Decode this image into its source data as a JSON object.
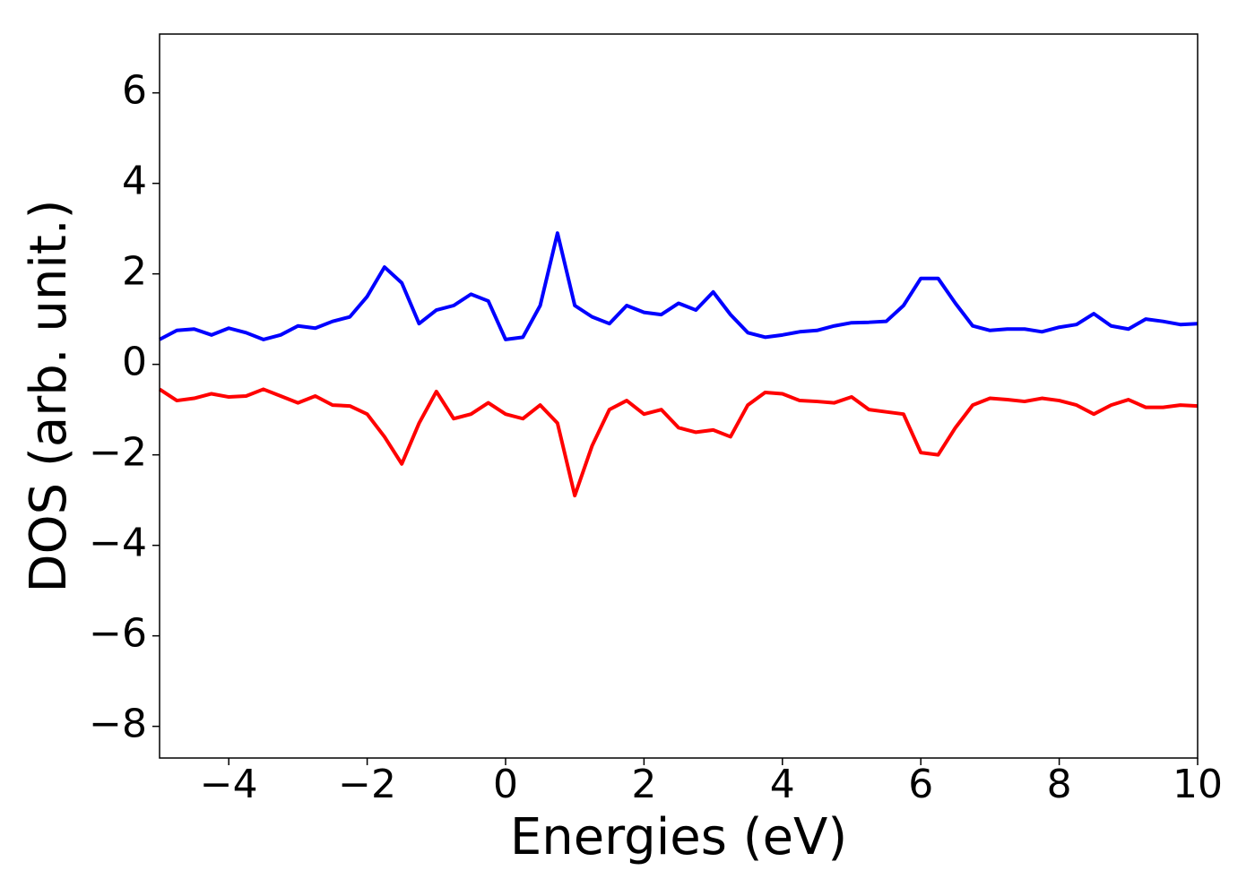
{
  "chart_data": {
    "type": "line",
    "xlabel": "Energies (eV)",
    "ylabel": "DOS (arb. unit.)",
    "x": [
      -5,
      -4.75,
      -4.5,
      -4.25,
      -4,
      -3.75,
      -3.5,
      -3.25,
      -3,
      -2.75,
      -2.5,
      -2.25,
      -2,
      -1.75,
      -1.5,
      -1.25,
      -1,
      -0.75,
      -0.5,
      -0.25,
      0,
      0.25,
      0.5,
      0.75,
      1,
      1.25,
      1.5,
      1.75,
      2,
      2.25,
      2.5,
      2.75,
      3,
      3.25,
      3.5,
      3.75,
      4,
      4.25,
      4.5,
      4.75,
      5,
      5.25,
      5.5,
      5.75,
      6,
      6.25,
      6.5,
      6.75,
      7,
      7.25,
      7.5,
      7.75,
      8,
      8.25,
      8.5,
      8.75,
      9,
      9.25,
      9.5,
      9.75,
      10
    ],
    "series": [
      {
        "color": "#0000ff",
        "values": [
          0.55,
          0.75,
          0.78,
          0.65,
          0.8,
          0.7,
          0.55,
          0.65,
          0.85,
          0.8,
          0.95,
          1.05,
          1.5,
          2.15,
          1.8,
          0.9,
          1.2,
          1.3,
          1.55,
          1.4,
          0.55,
          0.6,
          1.3,
          2.9,
          1.3,
          1.05,
          0.9,
          1.3,
          1.15,
          1.1,
          1.35,
          1.2,
          1.6,
          1.1,
          0.7,
          0.6,
          0.65,
          0.72,
          0.75,
          0.85,
          0.92,
          0.93,
          0.95,
          1.3,
          1.9,
          1.9,
          1.35,
          0.85,
          0.75,
          0.78,
          0.78,
          0.72,
          0.82,
          0.88,
          1.12,
          0.85,
          0.78,
          1.0,
          0.95,
          0.88,
          0.9
        ]
      },
      {
        "color": "#ff0000",
        "values": [
          -0.55,
          -0.8,
          -0.75,
          -0.65,
          -0.72,
          -0.7,
          -0.55,
          -0.7,
          -0.85,
          -0.7,
          -0.9,
          -0.92,
          -1.1,
          -1.6,
          -2.2,
          -1.3,
          -0.6,
          -1.2,
          -1.1,
          -0.85,
          -1.1,
          -1.2,
          -0.9,
          -1.3,
          -2.9,
          -1.8,
          -1.0,
          -0.8,
          -1.1,
          -1.0,
          -1.4,
          -1.5,
          -1.45,
          -1.6,
          -0.9,
          -0.62,
          -0.65,
          -0.8,
          -0.82,
          -0.85,
          -0.72,
          -1.0,
          -1.05,
          -1.1,
          -1.95,
          -2.0,
          -1.4,
          -0.9,
          -0.75,
          -0.78,
          -0.82,
          -0.75,
          -0.8,
          -0.9,
          -1.1,
          -0.9,
          -0.78,
          -0.95,
          -0.95,
          -0.9,
          -0.92
        ]
      }
    ],
    "xlim": [
      -5,
      10
    ],
    "xticks": [
      {
        "value": -4,
        "label": "−4"
      },
      {
        "value": -2,
        "label": "−2"
      },
      0,
      2,
      4,
      6,
      8,
      10
    ],
    "ylim": [
      -8.7,
      7.3
    ],
    "yticks": [
      {
        "value": -8,
        "label": "−8"
      },
      {
        "value": -6,
        "label": "−6"
      },
      {
        "value": -4,
        "label": "−4"
      },
      {
        "value": -2,
        "label": "−2"
      },
      0,
      2,
      4,
      6
    ],
    "grid": false
  }
}
